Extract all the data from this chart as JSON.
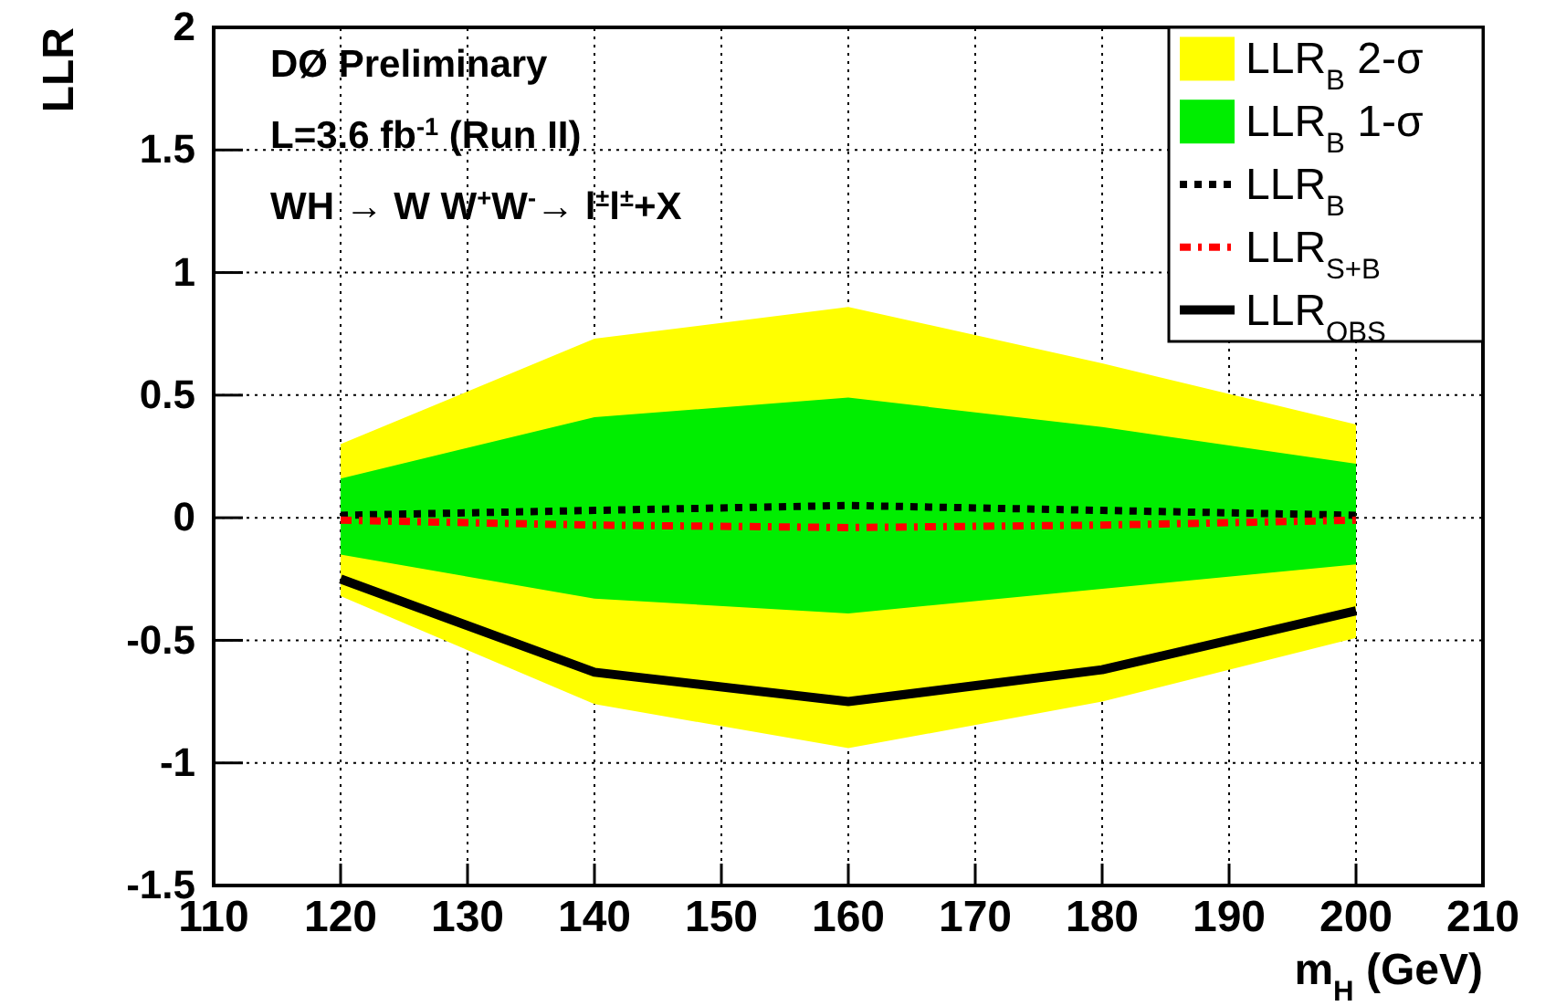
{
  "chart_data": {
    "type": "line",
    "xlabel": "m$_{H}$ (GeV)",
    "ylabel": "LLR",
    "annotations": [
      "DØ Preliminary",
      "L=3.6 fb$^{-1}$ (Run II)",
      "WH → W W$^{+}$W$^{-}$→ l$^{±}$l$^{±}$+X"
    ],
    "x": [
      120,
      140,
      160,
      180,
      200
    ],
    "series": [
      {
        "name": "LLR$_{B}$ 2-σ",
        "type": "area",
        "color": "#ffff00",
        "values": [
          null,
          null,
          null,
          null,
          null
        ],
        "upper": [
          0.3,
          0.73,
          0.86,
          0.63,
          0.38
        ],
        "lower": [
          -0.32,
          -0.76,
          -0.94,
          -0.75,
          -0.49
        ]
      },
      {
        "name": "LLR$_{B}$ 1-σ",
        "type": "area",
        "color": "#00ee00",
        "values": [
          null,
          null,
          null,
          null,
          null
        ],
        "upper": [
          0.16,
          0.41,
          0.49,
          0.37,
          0.22
        ],
        "lower": [
          -0.15,
          -0.33,
          -0.39,
          -0.29,
          -0.19
        ]
      },
      {
        "name": "LLR$_{B}$",
        "type": "line",
        "color": "#000000",
        "line_style": "dotted",
        "values": [
          0.01,
          0.03,
          0.05,
          0.03,
          0.01
        ]
      },
      {
        "name": "LLR$_{S+B}$",
        "type": "line",
        "color": "#ff0000",
        "line_style": "dashdot",
        "values": [
          -0.01,
          -0.03,
          -0.04,
          -0.03,
          -0.01
        ]
      },
      {
        "name": "LLR$_{OBS}$",
        "type": "line",
        "color": "#000000",
        "line_style": "solid",
        "values": [
          -0.25,
          -0.63,
          -0.75,
          -0.62,
          -0.38
        ]
      }
    ],
    "xlim": [
      110,
      210
    ],
    "xticks": [
      110,
      120,
      130,
      140,
      150,
      160,
      170,
      180,
      190,
      200,
      210
    ],
    "ylim": [
      -1.5,
      2
    ],
    "yticks": [
      -1.5,
      -1,
      -0.5,
      0,
      0.5,
      1,
      1.5,
      2
    ],
    "grid": true,
    "legend": "top right"
  }
}
